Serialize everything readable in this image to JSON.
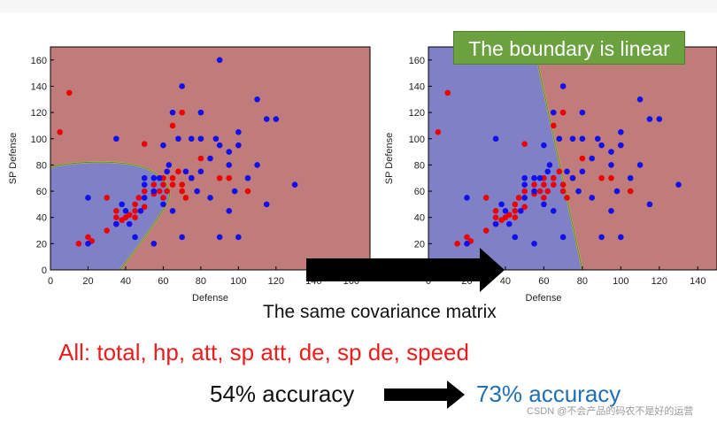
{
  "chart_data": [
    {
      "type": "scatter",
      "title": "",
      "xlabel": "Defense",
      "ylabel": "SP Defense",
      "xlim": [
        0,
        170
      ],
      "ylim": [
        0,
        170
      ],
      "xticks": [
        0,
        20,
        40,
        60,
        80,
        100,
        120,
        140,
        160
      ],
      "yticks": [
        0,
        20,
        40,
        60,
        80,
        100,
        120,
        140,
        160
      ],
      "background_regions": [
        {
          "class": "red",
          "color": "#c07b7b"
        },
        {
          "class": "blue",
          "color": "#8080c6"
        }
      ],
      "boundary": "quadratic",
      "series": [
        {
          "name": "red",
          "color": "#ee0000",
          "points": [
            [
              5,
              105
            ],
            [
              10,
              135
            ],
            [
              15,
              20
            ],
            [
              20,
              25
            ],
            [
              22,
              22
            ],
            [
              30,
              30
            ],
            [
              30,
              55
            ],
            [
              35,
              35
            ],
            [
              35,
              40
            ],
            [
              35,
              45
            ],
            [
              38,
              38
            ],
            [
              40,
              40
            ],
            [
              42,
              42
            ],
            [
              45,
              40
            ],
            [
              45,
              45
            ],
            [
              45,
              50
            ],
            [
              47,
              55
            ],
            [
              50,
              48
            ],
            [
              50,
              60
            ],
            [
              50,
              96
            ],
            [
              55,
              58
            ],
            [
              55,
              65
            ],
            [
              58,
              60
            ],
            [
              60,
              55
            ],
            [
              60,
              65
            ],
            [
              60,
              70
            ],
            [
              62,
              60
            ],
            [
              65,
              65
            ],
            [
              65,
              70
            ],
            [
              65,
              110
            ],
            [
              68,
              75
            ],
            [
              70,
              60
            ],
            [
              70,
              65
            ],
            [
              70,
              120
            ],
            [
              72,
              55
            ],
            [
              75,
              70
            ],
            [
              80,
              85
            ],
            [
              90,
              70
            ],
            [
              95,
              70
            ],
            [
              100,
              95
            ],
            [
              105,
              60
            ]
          ]
        },
        {
          "name": "blue",
          "color": "#1010ee",
          "points": [
            [
              20,
              20
            ],
            [
              20,
              55
            ],
            [
              35,
              35
            ],
            [
              35,
              100
            ],
            [
              38,
              50
            ],
            [
              40,
              45
            ],
            [
              42,
              35
            ],
            [
              45,
              25
            ],
            [
              48,
              45
            ],
            [
              50,
              55
            ],
            [
              50,
              65
            ],
            [
              50,
              70
            ],
            [
              55,
              20
            ],
            [
              55,
              60
            ],
            [
              55,
              70
            ],
            [
              58,
              70
            ],
            [
              60,
              50
            ],
            [
              60,
              95
            ],
            [
              62,
              75
            ],
            [
              63,
              80
            ],
            [
              65,
              45
            ],
            [
              65,
              120
            ],
            [
              68,
              100
            ],
            [
              70,
              25
            ],
            [
              70,
              140
            ],
            [
              72,
              75
            ],
            [
              75,
              70
            ],
            [
              75,
              100
            ],
            [
              78,
              60
            ],
            [
              80,
              75
            ],
            [
              80,
              100
            ],
            [
              80,
              120
            ],
            [
              85,
              55
            ],
            [
              85,
              85
            ],
            [
              88,
              100
            ],
            [
              90,
              25
            ],
            [
              90,
              95
            ],
            [
              90,
              160
            ],
            [
              95,
              45
            ],
            [
              95,
              80
            ],
            [
              95,
              90
            ],
            [
              98,
              60
            ],
            [
              100,
              25
            ],
            [
              100,
              105
            ],
            [
              100,
              95
            ],
            [
              105,
              70
            ],
            [
              110,
              80
            ],
            [
              110,
              130
            ],
            [
              115,
              50
            ],
            [
              115,
              115
            ],
            [
              120,
              115
            ],
            [
              130,
              65
            ]
          ]
        }
      ]
    },
    {
      "type": "scatter",
      "title": "",
      "xlabel": "Defense",
      "ylabel": "SP Defense",
      "xlim": [
        0,
        150
      ],
      "ylim": [
        0,
        170
      ],
      "xticks": [
        0,
        20,
        40,
        60,
        80,
        100,
        120,
        140
      ],
      "yticks": [
        0,
        20,
        40,
        60,
        80,
        100,
        120,
        140,
        160
      ],
      "background_regions": [
        {
          "class": "blue",
          "color": "#8080c6"
        },
        {
          "class": "red",
          "color": "#c07b7b"
        }
      ],
      "boundary": "linear",
      "boundary_line": [
        [
          80,
          0
        ],
        [
          55,
          170
        ]
      ],
      "series": [
        {
          "name": "red",
          "color": "#ee0000",
          "points": [
            [
              5,
              105
            ],
            [
              10,
              135
            ],
            [
              15,
              20
            ],
            [
              20,
              25
            ],
            [
              22,
              22
            ],
            [
              30,
              30
            ],
            [
              30,
              55
            ],
            [
              35,
              35
            ],
            [
              35,
              40
            ],
            [
              35,
              45
            ],
            [
              38,
              38
            ],
            [
              40,
              40
            ],
            [
              42,
              42
            ],
            [
              45,
              40
            ],
            [
              45,
              45
            ],
            [
              45,
              50
            ],
            [
              47,
              55
            ],
            [
              50,
              48
            ],
            [
              50,
              60
            ],
            [
              50,
              96
            ],
            [
              55,
              58
            ],
            [
              55,
              65
            ],
            [
              58,
              60
            ],
            [
              60,
              55
            ],
            [
              60,
              65
            ],
            [
              60,
              70
            ],
            [
              62,
              60
            ],
            [
              65,
              65
            ],
            [
              65,
              70
            ],
            [
              65,
              110
            ],
            [
              68,
              75
            ],
            [
              70,
              60
            ],
            [
              70,
              65
            ],
            [
              70,
              120
            ],
            [
              72,
              55
            ],
            [
              75,
              70
            ],
            [
              80,
              85
            ],
            [
              90,
              70
            ],
            [
              95,
              70
            ],
            [
              100,
              95
            ],
            [
              105,
              60
            ]
          ]
        },
        {
          "name": "blue",
          "color": "#1010ee",
          "points": [
            [
              20,
              20
            ],
            [
              20,
              55
            ],
            [
              35,
              35
            ],
            [
              35,
              100
            ],
            [
              38,
              50
            ],
            [
              40,
              45
            ],
            [
              42,
              35
            ],
            [
              45,
              25
            ],
            [
              48,
              45
            ],
            [
              50,
              55
            ],
            [
              50,
              65
            ],
            [
              50,
              70
            ],
            [
              55,
              20
            ],
            [
              55,
              60
            ],
            [
              55,
              70
            ],
            [
              58,
              70
            ],
            [
              60,
              50
            ],
            [
              60,
              95
            ],
            [
              62,
              75
            ],
            [
              63,
              80
            ],
            [
              65,
              45
            ],
            [
              65,
              120
            ],
            [
              68,
              100
            ],
            [
              70,
              25
            ],
            [
              70,
              140
            ],
            [
              72,
              75
            ],
            [
              75,
              70
            ],
            [
              75,
              100
            ],
            [
              78,
              60
            ],
            [
              80,
              75
            ],
            [
              80,
              100
            ],
            [
              80,
              120
            ],
            [
              85,
              55
            ],
            [
              85,
              85
            ],
            [
              88,
              100
            ],
            [
              90,
              25
            ],
            [
              90,
              95
            ],
            [
              90,
              160
            ],
            [
              95,
              45
            ],
            [
              95,
              80
            ],
            [
              95,
              90
            ],
            [
              98,
              60
            ],
            [
              100,
              25
            ],
            [
              100,
              105
            ],
            [
              100,
              95
            ],
            [
              105,
              70
            ],
            [
              110,
              80
            ],
            [
              110,
              130
            ],
            [
              115,
              50
            ],
            [
              115,
              115
            ],
            [
              120,
              115
            ],
            [
              130,
              65
            ]
          ]
        }
      ]
    }
  ],
  "annotations": {
    "boundary_label": "The boundary is linear",
    "covariance_text": "The same covariance matrix",
    "features_text": "All: total, hp, att, sp att, de, sp de, speed",
    "accuracy_before": "54% accuracy",
    "accuracy_after": "73% accuracy",
    "watermark": "CSDN @不会产品的码农不是好的运营"
  },
  "colors": {
    "red_region": "#c07b7b",
    "blue_region": "#8080c6",
    "red_point": "#ee0000",
    "blue_point": "#1010ee",
    "label_green": "#6ba23f",
    "feature_red": "#ee1c1c",
    "accuracy_blue": "#1f6fb5"
  }
}
